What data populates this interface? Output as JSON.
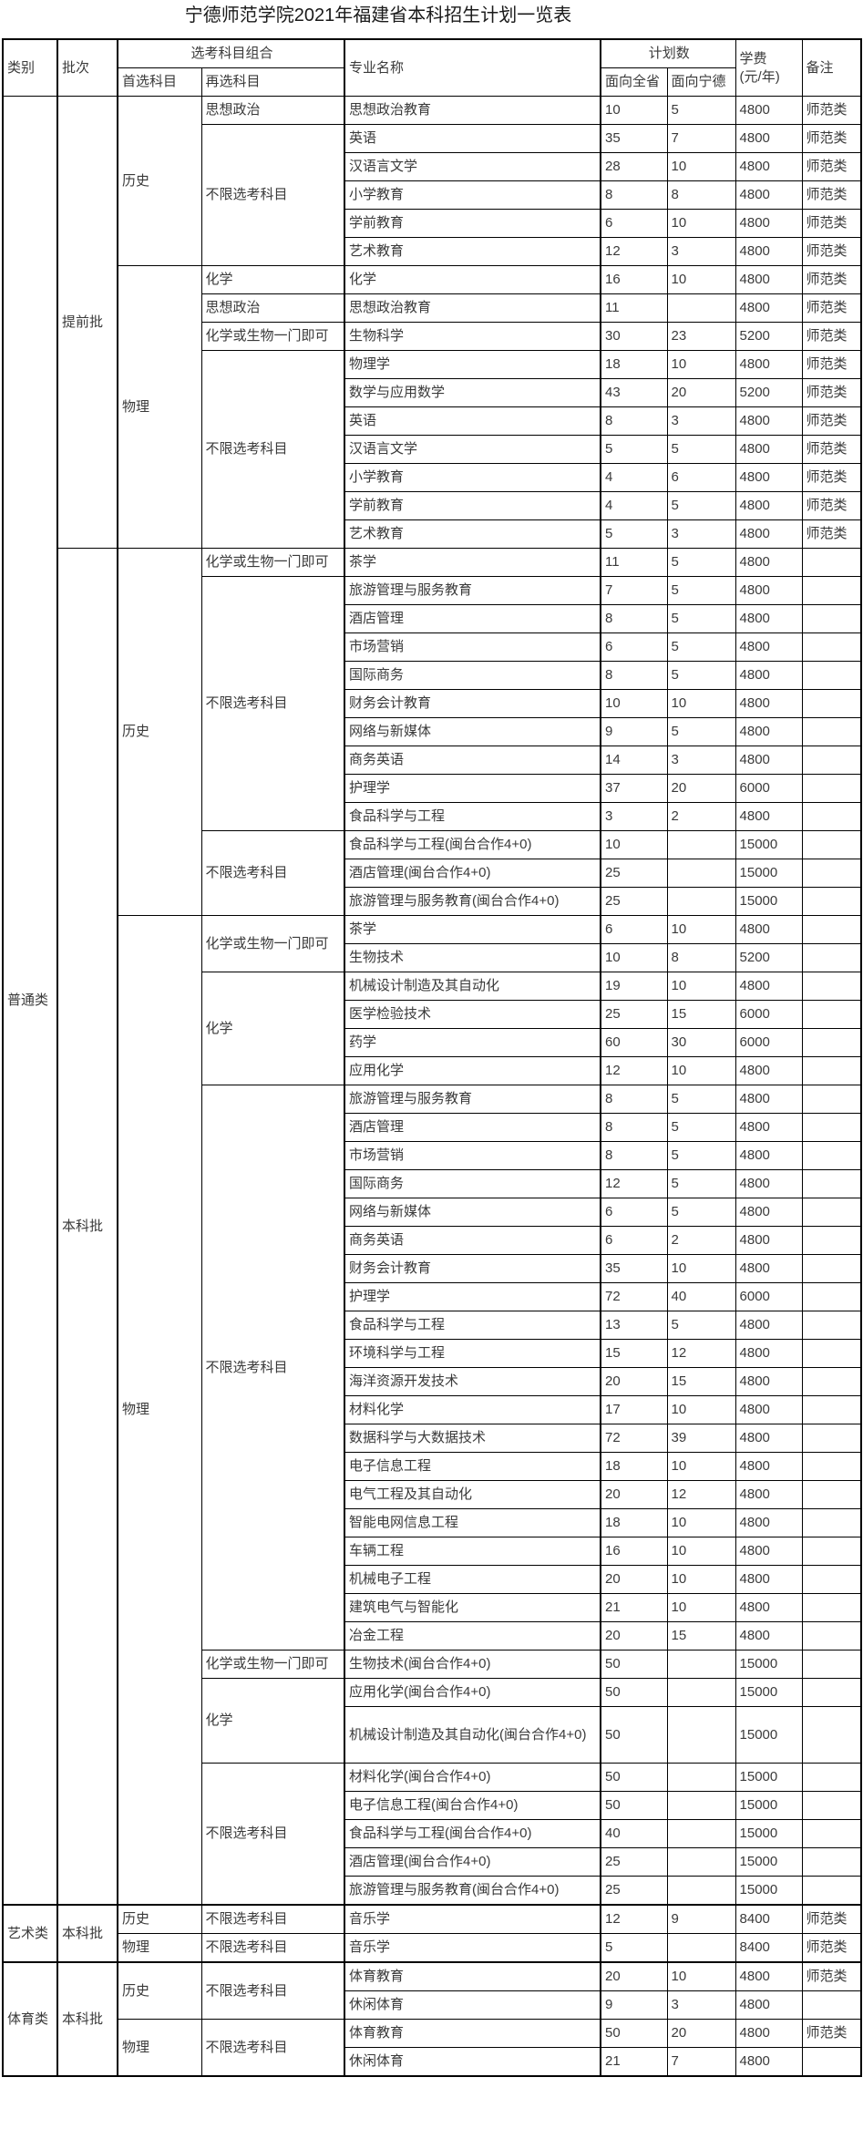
{
  "title": "宁德师范学院2021年福建省本科招生计划一览表",
  "colors": {
    "background": "#ffffff",
    "border": "#000000",
    "text": "#3a3a3a",
    "title": "#1a1a1a"
  },
  "table": {
    "headers": {
      "category": "类别",
      "batch": "批次",
      "subject_combo": "选考科目组合",
      "first_subject": "首选科目",
      "second_subject": "再选科目",
      "major": "专业名称",
      "plan": "计划数",
      "province": "面向全省",
      "ningde": "面向宁德",
      "tuition_line1": "学费",
      "tuition_line2": "(元/年)",
      "remark": "备注"
    },
    "column_names": [
      "category",
      "batch",
      "first-subject",
      "second-subject",
      "major",
      "plan-province",
      "plan-ningde",
      "tuition",
      "remark"
    ],
    "tall_rows": [
      57
    ],
    "section_start_rows": [
      63,
      65
    ],
    "rows": [
      [
        [
          "普通类",
          63
        ],
        [
          "提前批",
          16
        ],
        [
          "历史",
          6
        ],
        [
          "思想政治",
          1
        ],
        "思想政治教育",
        "10",
        "5",
        "4800",
        "师范类"
      ],
      [
        null,
        null,
        null,
        [
          "不限选考科目",
          5
        ],
        "英语",
        "35",
        "7",
        "4800",
        "师范类"
      ],
      [
        null,
        null,
        null,
        null,
        "汉语言文学",
        "28",
        "10",
        "4800",
        "师范类"
      ],
      [
        null,
        null,
        null,
        null,
        "小学教育",
        "8",
        "8",
        "4800",
        "师范类"
      ],
      [
        null,
        null,
        null,
        null,
        "学前教育",
        "6",
        "10",
        "4800",
        "师范类"
      ],
      [
        null,
        null,
        null,
        null,
        "艺术教育",
        "12",
        "3",
        "4800",
        "师范类"
      ],
      [
        null,
        null,
        [
          "物理",
          10
        ],
        [
          "化学",
          1
        ],
        "化学",
        "16",
        "10",
        "4800",
        "师范类"
      ],
      [
        null,
        null,
        null,
        [
          "思想政治",
          1
        ],
        "思想政治教育",
        "11",
        "",
        "4800",
        "师范类"
      ],
      [
        null,
        null,
        null,
        [
          "化学或生物一门即可",
          1
        ],
        "生物科学",
        "30",
        "23",
        "5200",
        "师范类"
      ],
      [
        null,
        null,
        null,
        [
          "不限选考科目",
          7
        ],
        "物理学",
        "18",
        "10",
        "4800",
        "师范类"
      ],
      [
        null,
        null,
        null,
        null,
        "数学与应用数学",
        "43",
        "20",
        "5200",
        "师范类"
      ],
      [
        null,
        null,
        null,
        null,
        "英语",
        "8",
        "3",
        "4800",
        "师范类"
      ],
      [
        null,
        null,
        null,
        null,
        "汉语言文学",
        "5",
        "5",
        "4800",
        "师范类"
      ],
      [
        null,
        null,
        null,
        null,
        "小学教育",
        "4",
        "6",
        "4800",
        "师范类"
      ],
      [
        null,
        null,
        null,
        null,
        "学前教育",
        "4",
        "5",
        "4800",
        "师范类"
      ],
      [
        null,
        null,
        null,
        null,
        "艺术教育",
        "5",
        "3",
        "4800",
        "师范类"
      ],
      [
        null,
        [
          "本科批",
          47
        ],
        [
          "历史",
          13
        ],
        [
          "化学或生物一门即可",
          1
        ],
        "茶学",
        "11",
        "5",
        "4800",
        ""
      ],
      [
        null,
        null,
        null,
        [
          "不限选考科目",
          9
        ],
        "旅游管理与服务教育",
        "7",
        "5",
        "4800",
        ""
      ],
      [
        null,
        null,
        null,
        null,
        "酒店管理",
        "8",
        "5",
        "4800",
        ""
      ],
      [
        null,
        null,
        null,
        null,
        "市场营销",
        "6",
        "5",
        "4800",
        ""
      ],
      [
        null,
        null,
        null,
        null,
        "国际商务",
        "8",
        "5",
        "4800",
        ""
      ],
      [
        null,
        null,
        null,
        null,
        "财务会计教育",
        "10",
        "10",
        "4800",
        ""
      ],
      [
        null,
        null,
        null,
        null,
        "网络与新媒体",
        "9",
        "5",
        "4800",
        ""
      ],
      [
        null,
        null,
        null,
        null,
        "商务英语",
        "14",
        "3",
        "4800",
        ""
      ],
      [
        null,
        null,
        null,
        null,
        "护理学",
        "37",
        "20",
        "6000",
        ""
      ],
      [
        null,
        null,
        null,
        null,
        "食品科学与工程",
        "3",
        "2",
        "4800",
        ""
      ],
      [
        null,
        null,
        null,
        [
          "不限选考科目",
          3
        ],
        "食品科学与工程(闽台合作4+0)",
        "10",
        "",
        "15000",
        ""
      ],
      [
        null,
        null,
        null,
        null,
        "酒店管理(闽台合作4+0)",
        "25",
        "",
        "15000",
        ""
      ],
      [
        null,
        null,
        null,
        null,
        "旅游管理与服务教育(闽台合作4+0)",
        "25",
        "",
        "15000",
        ""
      ],
      [
        null,
        null,
        [
          "物理",
          34
        ],
        [
          "化学或生物一门即可",
          2
        ],
        "茶学",
        "6",
        "10",
        "4800",
        ""
      ],
      [
        null,
        null,
        null,
        null,
        "生物技术",
        "10",
        "8",
        "5200",
        ""
      ],
      [
        null,
        null,
        null,
        [
          "化学",
          4
        ],
        "机械设计制造及其自动化",
        "19",
        "10",
        "4800",
        ""
      ],
      [
        null,
        null,
        null,
        null,
        "医学检验技术",
        "25",
        "15",
        "6000",
        ""
      ],
      [
        null,
        null,
        null,
        null,
        "药学",
        "60",
        "30",
        "6000",
        ""
      ],
      [
        null,
        null,
        null,
        null,
        "应用化学",
        "12",
        "10",
        "4800",
        ""
      ],
      [
        null,
        null,
        null,
        [
          "不限选考科目",
          20
        ],
        "旅游管理与服务教育",
        "8",
        "5",
        "4800",
        ""
      ],
      [
        null,
        null,
        null,
        null,
        "酒店管理",
        "8",
        "5",
        "4800",
        ""
      ],
      [
        null,
        null,
        null,
        null,
        "市场营销",
        "8",
        "5",
        "4800",
        ""
      ],
      [
        null,
        null,
        null,
        null,
        "国际商务",
        "12",
        "5",
        "4800",
        ""
      ],
      [
        null,
        null,
        null,
        null,
        "网络与新媒体",
        "6",
        "5",
        "4800",
        ""
      ],
      [
        null,
        null,
        null,
        null,
        "商务英语",
        "6",
        "2",
        "4800",
        ""
      ],
      [
        null,
        null,
        null,
        null,
        "财务会计教育",
        "35",
        "10",
        "4800",
        ""
      ],
      [
        null,
        null,
        null,
        null,
        "护理学",
        "72",
        "40",
        "6000",
        ""
      ],
      [
        null,
        null,
        null,
        null,
        "食品科学与工程",
        "13",
        "5",
        "4800",
        ""
      ],
      [
        null,
        null,
        null,
        null,
        "环境科学与工程",
        "15",
        "12",
        "4800",
        ""
      ],
      [
        null,
        null,
        null,
        null,
        "海洋资源开发技术",
        "20",
        "15",
        "4800",
        ""
      ],
      [
        null,
        null,
        null,
        null,
        "材料化学",
        "17",
        "10",
        "4800",
        ""
      ],
      [
        null,
        null,
        null,
        null,
        "数据科学与大数据技术",
        "72",
        "39",
        "4800",
        ""
      ],
      [
        null,
        null,
        null,
        null,
        "电子信息工程",
        "18",
        "10",
        "4800",
        ""
      ],
      [
        null,
        null,
        null,
        null,
        "电气工程及其自动化",
        "20",
        "12",
        "4800",
        ""
      ],
      [
        null,
        null,
        null,
        null,
        "智能电网信息工程",
        "18",
        "10",
        "4800",
        ""
      ],
      [
        null,
        null,
        null,
        null,
        "车辆工程",
        "16",
        "10",
        "4800",
        ""
      ],
      [
        null,
        null,
        null,
        null,
        "机械电子工程",
        "20",
        "10",
        "4800",
        ""
      ],
      [
        null,
        null,
        null,
        null,
        "建筑电气与智能化",
        "21",
        "10",
        "4800",
        ""
      ],
      [
        null,
        null,
        null,
        null,
        "冶金工程",
        "20",
        "15",
        "4800",
        ""
      ],
      [
        null,
        null,
        null,
        [
          "化学或生物一门即可",
          1
        ],
        "生物技术(闽台合作4+0)",
        "50",
        "",
        "15000",
        ""
      ],
      [
        null,
        null,
        null,
        [
          "化学",
          2
        ],
        "应用化学(闽台合作4+0)",
        "50",
        "",
        "15000",
        ""
      ],
      [
        null,
        null,
        null,
        null,
        "机械设计制造及其自动化(闽台合作4+0)",
        "50",
        "",
        "15000",
        ""
      ],
      [
        null,
        null,
        null,
        [
          "不限选考科目",
          5
        ],
        "材料化学(闽台合作4+0)",
        "50",
        "",
        "15000",
        ""
      ],
      [
        null,
        null,
        null,
        null,
        "电子信息工程(闽台合作4+0)",
        "50",
        "",
        "15000",
        ""
      ],
      [
        null,
        null,
        null,
        null,
        "食品科学与工程(闽台合作4+0)",
        "40",
        "",
        "15000",
        ""
      ],
      [
        null,
        null,
        null,
        null,
        "酒店管理(闽台合作4+0)",
        "25",
        "",
        "15000",
        ""
      ],
      [
        null,
        null,
        null,
        null,
        "旅游管理与服务教育(闽台合作4+0)",
        "25",
        "",
        "15000",
        ""
      ],
      [
        [
          "艺术类",
          2
        ],
        [
          "本科批",
          2
        ],
        [
          "历史",
          1
        ],
        [
          "不限选考科目",
          1
        ],
        "音乐学",
        "12",
        "9",
        "8400",
        "师范类"
      ],
      [
        null,
        null,
        [
          "物理",
          1
        ],
        [
          "不限选考科目",
          1
        ],
        "音乐学",
        "5",
        "",
        "8400",
        "师范类"
      ],
      [
        [
          "体育类",
          4
        ],
        [
          "本科批",
          4
        ],
        [
          "历史",
          2
        ],
        [
          "不限选考科目",
          2
        ],
        "体育教育",
        "20",
        "10",
        "4800",
        "师范类"
      ],
      [
        null,
        null,
        null,
        null,
        "休闲体育",
        "9",
        "3",
        "4800",
        ""
      ],
      [
        null,
        null,
        [
          "物理",
          2
        ],
        [
          "不限选考科目",
          2
        ],
        "体育教育",
        "50",
        "20",
        "4800",
        "师范类"
      ],
      [
        null,
        null,
        null,
        null,
        "休闲体育",
        "21",
        "7",
        "4800",
        ""
      ]
    ]
  }
}
